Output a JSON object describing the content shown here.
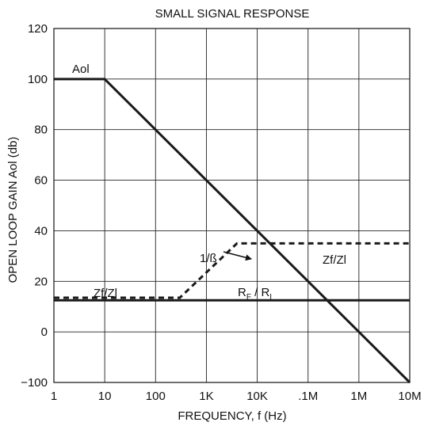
{
  "chart_data": {
    "type": "line",
    "title": "SMALL SIGNAL RESPONSE",
    "xlabel": "FREQUENCY, f (Hz)",
    "ylabel": "OPEN LOOP GAIN Aol (db)",
    "x_scale": "log",
    "xlim": [
      1,
      10000000
    ],
    "x_ticks": [
      1,
      10,
      100,
      1000,
      10000,
      100000,
      1000000,
      10000000
    ],
    "x_tick_labels": [
      "1",
      "10",
      "100",
      "1K",
      "10K",
      ".1M",
      "1M",
      "10M"
    ],
    "y_tick_labels": [
      "120",
      "100",
      "80",
      "60",
      "40",
      "20",
      "0",
      "−100"
    ],
    "grid": true,
    "series": [
      {
        "name": "Aol",
        "style": "solid",
        "color": "#1a1a1a",
        "x": [
          1,
          10,
          10000000
        ],
        "y": [
          100,
          100,
          -100
        ]
      },
      {
        "name": "1/ß",
        "style": "dashed",
        "color": "#1a1a1a",
        "x": [
          1,
          300,
          4000,
          10000000
        ],
        "y": [
          13.5,
          13.5,
          35,
          35
        ]
      },
      {
        "name": "R_F / R_I",
        "style": "solid",
        "color": "#1a1a1a",
        "x": [
          1,
          10000000
        ],
        "y": [
          12.5,
          12.5
        ]
      }
    ],
    "annotations": {
      "aol": "Aol",
      "beta": "1/ß",
      "zf_left": "Zf/Zl",
      "zf_right": "Zf/Zl",
      "rf_main": "R",
      "rf_sub": "F",
      "rf_sep": " / R",
      "ri_sub": "I"
    }
  }
}
